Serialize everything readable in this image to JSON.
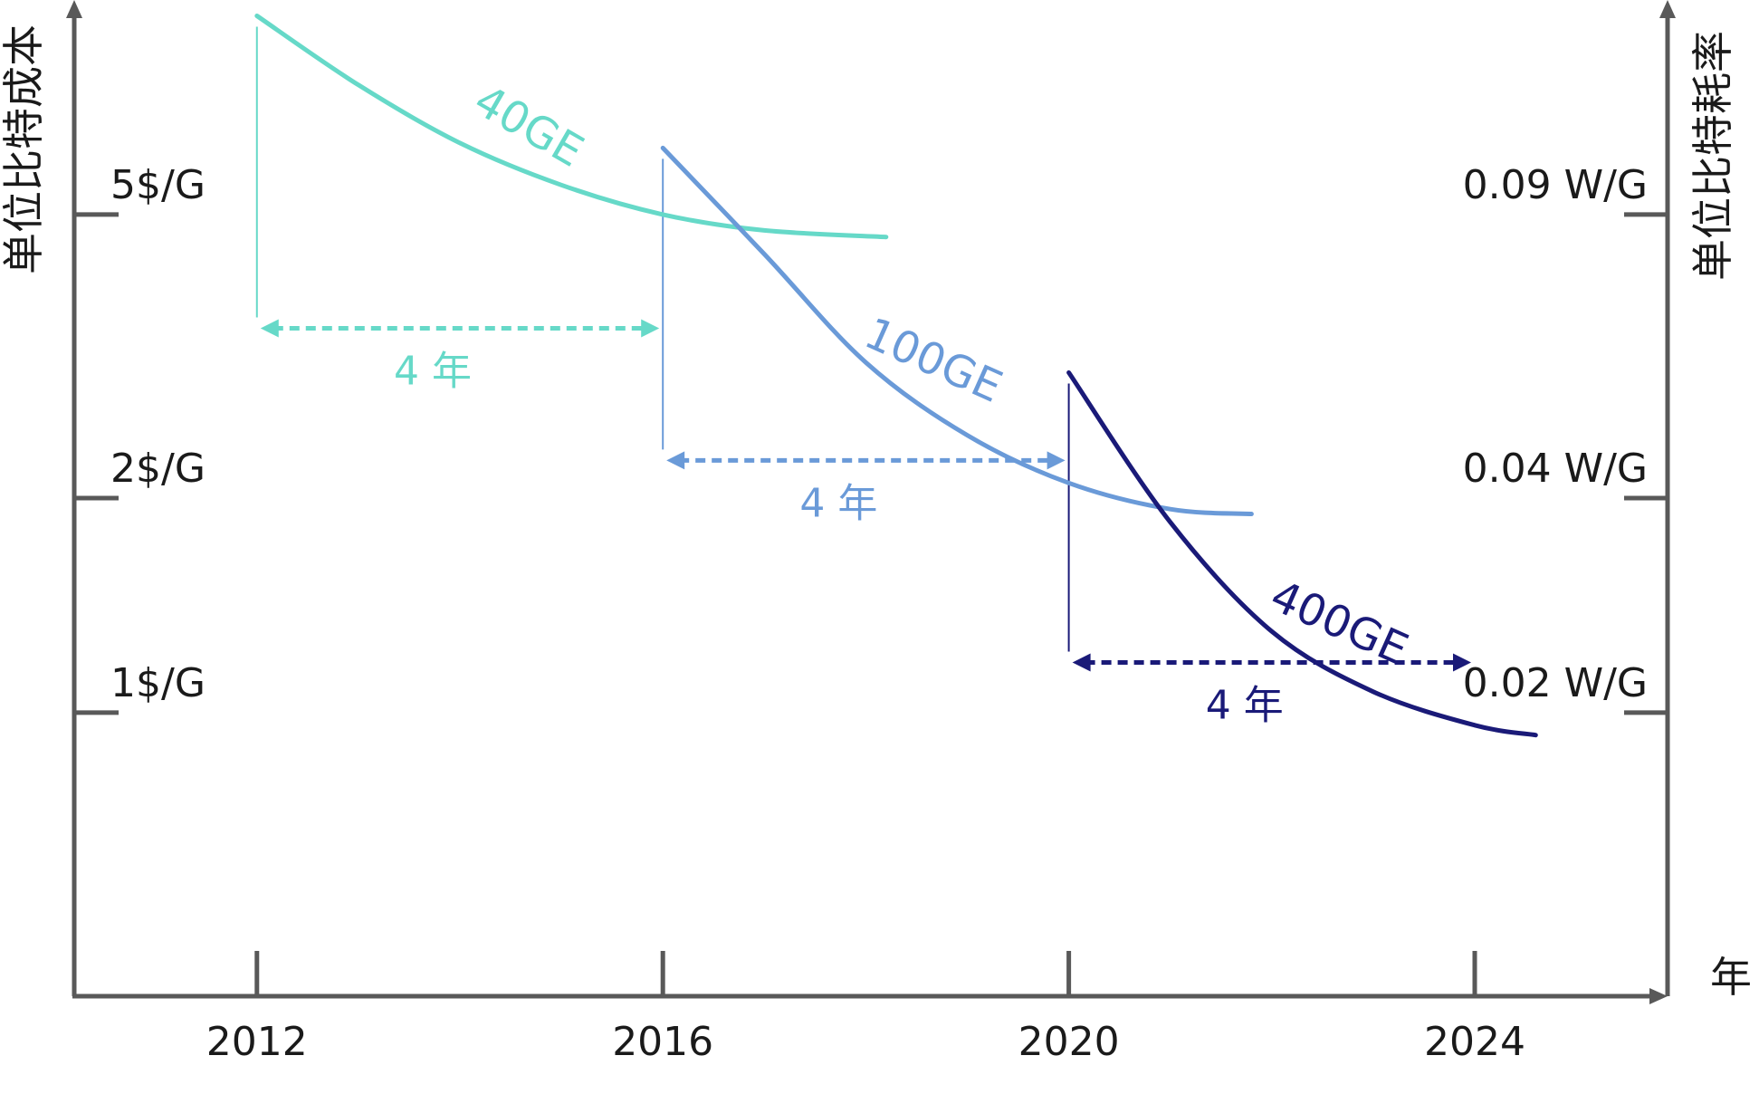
{
  "chart_data": {
    "type": "line",
    "title": "",
    "xlabel": "年",
    "ylabel_left": "单位比特成本",
    "ylabel_right": "单位比特耗率",
    "x_ticks": [
      "2012",
      "2016",
      "2020",
      "2024"
    ],
    "xlim": [
      2010.2,
      2025.9
    ],
    "y_scale": "log",
    "ylim_left": [
      0.4,
      10
    ],
    "y_ticks_left": [
      {
        "value": 5,
        "label": "5$/G"
      },
      {
        "value": 2,
        "label": "2$/G"
      },
      {
        "value": 1,
        "label": "1$/G"
      }
    ],
    "y_ticks_right": [
      {
        "value": 5,
        "label": "0.09 W/G"
      },
      {
        "value": 2,
        "label": "0.04 W/G"
      },
      {
        "value": 1,
        "label": "0.02 W/G"
      }
    ],
    "grid": false,
    "series": [
      {
        "name": "40GE",
        "color": "#66D9C8",
        "x": [
          2012.0,
          2013.0,
          2014.0,
          2015.0,
          2016.0,
          2017.0,
          2018.2
        ],
        "y": [
          9.5,
          7.6,
          6.3,
          5.5,
          5.0,
          4.75,
          4.65
        ]
      },
      {
        "name": "100GE",
        "color": "#6A9AD8",
        "x": [
          2016.0,
          2017.0,
          2018.0,
          2019.0,
          2020.0,
          2021.0,
          2021.8
        ],
        "y": [
          6.2,
          4.4,
          3.1,
          2.45,
          2.1,
          1.93,
          1.9
        ]
      },
      {
        "name": "400GE",
        "color": "#1A1A78",
        "x": [
          2020.0,
          2021.0,
          2022.0,
          2023.0,
          2024.0,
          2024.6
        ],
        "y": [
          3.0,
          1.85,
          1.3,
          1.07,
          0.96,
          0.93
        ]
      }
    ],
    "spans": [
      {
        "from": 2012,
        "to": 2016,
        "label": "4 年",
        "color": "#66D9C8"
      },
      {
        "from": 2016,
        "to": 2020,
        "label": "4 年",
        "color": "#6A9AD8"
      },
      {
        "from": 2020,
        "to": 2024,
        "label": "4 年",
        "color": "#1A1A78"
      }
    ]
  }
}
